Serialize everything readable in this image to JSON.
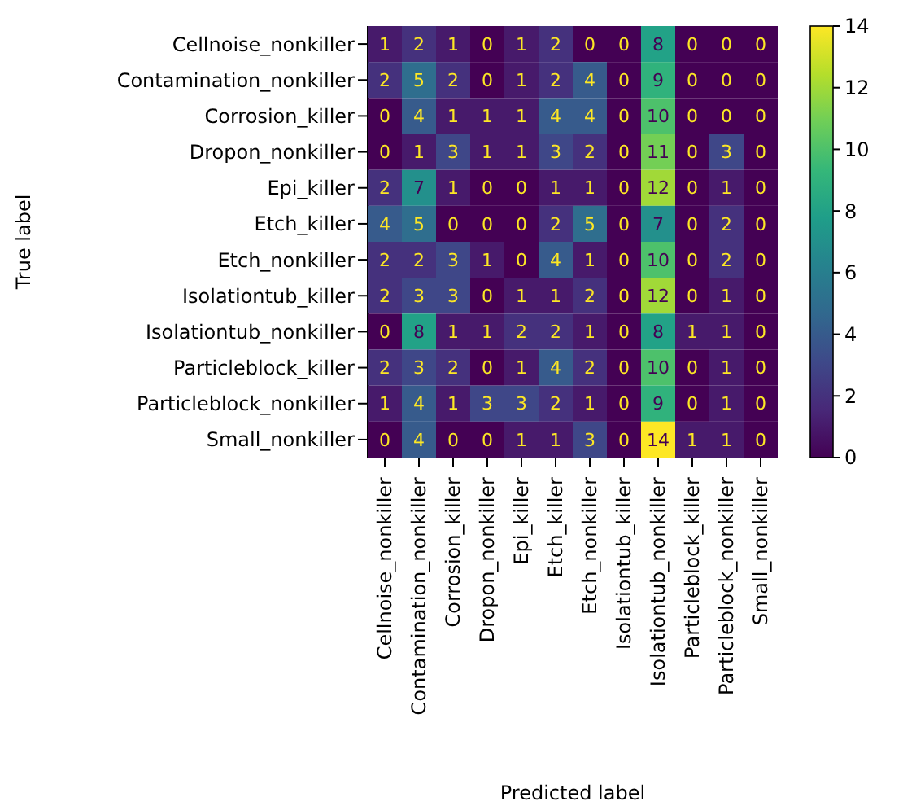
{
  "chart_data": {
    "type": "heatmap",
    "xlabel": "Predicted label",
    "ylabel": "True label",
    "categories": [
      "Cellnoise_nonkiller",
      "Contamination_nonkiller",
      "Corrosion_killer",
      "Dropon_nonkiller",
      "Epi_killer",
      "Etch_killer",
      "Etch_nonkiller",
      "Isolationtub_killer",
      "Isolationtub_nonkiller",
      "Particleblock_killer",
      "Particleblock_nonkiller",
      "Small_nonkiller"
    ],
    "y_categories": [
      "Cellnoise_nonkiller",
      "Contamination_nonkiller",
      "Corrosion_killer",
      "Dropon_nonkiller",
      "Epi_killer",
      "Etch_killer",
      "Etch_nonkiller",
      "Isolationtub_killer",
      "Isolationtub_nonkiller",
      "Particleblock_killer",
      "Particleblock_nonkiller",
      "Small_nonkiller"
    ],
    "cells": [
      [
        1,
        2,
        1,
        0,
        1,
        2,
        0,
        0,
        8,
        0,
        0,
        0
      ],
      [
        2,
        5,
        2,
        0,
        1,
        2,
        4,
        0,
        9,
        0,
        0,
        0
      ],
      [
        0,
        4,
        1,
        1,
        1,
        4,
        4,
        0,
        10,
        0,
        0,
        0
      ],
      [
        0,
        1,
        3,
        1,
        1,
        3,
        2,
        0,
        11,
        0,
        3,
        0
      ],
      [
        2,
        7,
        1,
        0,
        0,
        1,
        1,
        0,
        12,
        0,
        1,
        0
      ],
      [
        4,
        5,
        0,
        0,
        0,
        2,
        5,
        0,
        7,
        0,
        2,
        0
      ],
      [
        2,
        2,
        3,
        1,
        0,
        4,
        1,
        0,
        10,
        0,
        2,
        0
      ],
      [
        2,
        3,
        3,
        0,
        1,
        1,
        2,
        0,
        12,
        0,
        1,
        0
      ],
      [
        0,
        8,
        1,
        1,
        2,
        2,
        1,
        0,
        8,
        1,
        1,
        0
      ],
      [
        2,
        3,
        2,
        0,
        1,
        4,
        2,
        0,
        10,
        0,
        1,
        0
      ],
      [
        1,
        4,
        1,
        3,
        3,
        2,
        1,
        0,
        9,
        0,
        1,
        0
      ],
      [
        0,
        4,
        0,
        0,
        1,
        1,
        3,
        0,
        14,
        1,
        1,
        0
      ]
    ],
    "data_labels": true,
    "clim": [
      0,
      14
    ],
    "cticks": [
      0,
      2,
      4,
      6,
      8,
      10,
      12,
      14
    ]
  }
}
